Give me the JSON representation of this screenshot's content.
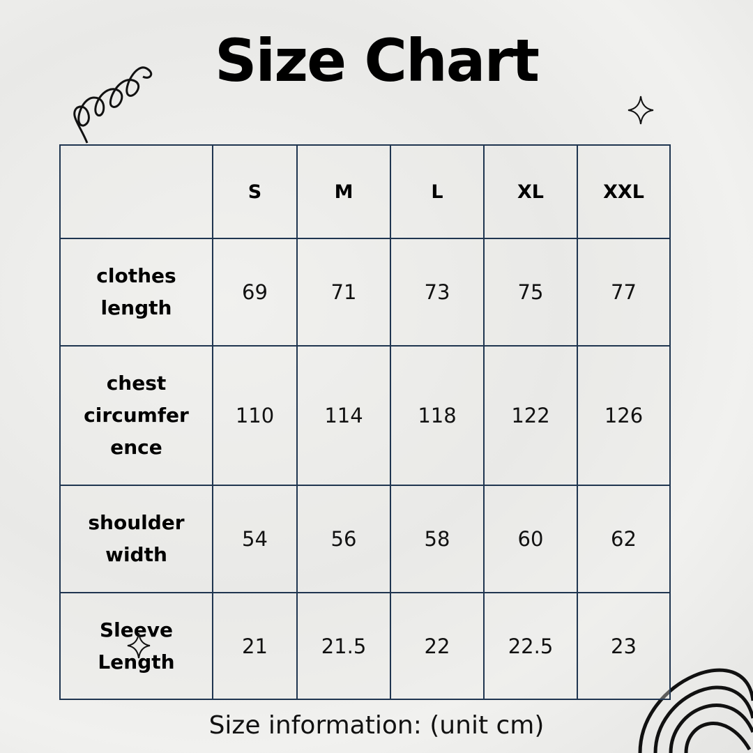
{
  "title": "Size Chart",
  "table": {
    "headers": [
      "",
      "S",
      "M",
      "L",
      "XL",
      "XXL"
    ],
    "rows": [
      {
        "label": "clothes length",
        "values": [
          "69",
          "71",
          "73",
          "75",
          "77"
        ]
      },
      {
        "label": "chest circumfer ence",
        "values": [
          "110",
          "114",
          "118",
          "122",
          "126"
        ]
      },
      {
        "label": "shoulder width",
        "values": [
          "54",
          "56",
          "58",
          "60",
          "62"
        ]
      },
      {
        "label": "Sleeve Length",
        "values": [
          "21",
          "21.5",
          "22",
          "22.5",
          "23"
        ]
      }
    ]
  },
  "footer": "Size information: (unit cm)",
  "colors": {
    "border": "#1f3550",
    "text": "#000000"
  },
  "decorations": [
    "spiral-doodle",
    "sparkle-star",
    "sparkle-star",
    "arch-doodle"
  ]
}
